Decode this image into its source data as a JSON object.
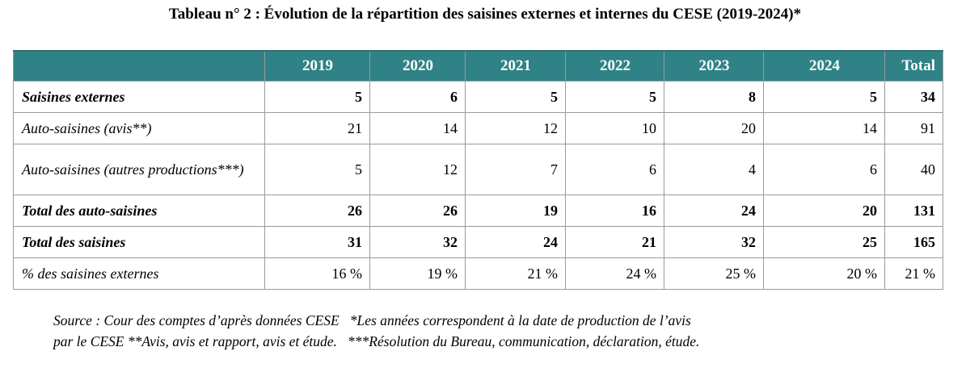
{
  "title": "Tableau n° 2 : Évolution de la répartition des saisines externes et internes du CESE (2019-2024)*",
  "table": {
    "headers": [
      "",
      "2019",
      "2020",
      "2021",
      "2022",
      "2023",
      "2024",
      "Total"
    ],
    "rows": [
      {
        "label": "Saisines externes",
        "values": [
          "5",
          "6",
          "5",
          "5",
          "8",
          "5",
          "34"
        ],
        "bold": true
      },
      {
        "label": "Auto-saisines (avis**)",
        "values": [
          "21",
          "14",
          "12",
          "10",
          "20",
          "14",
          "91"
        ],
        "bold": false
      },
      {
        "label": "Auto-saisines (autres productions***)",
        "values": [
          "5",
          "12",
          "7",
          "6",
          "4",
          "6",
          "40"
        ],
        "bold": false
      },
      {
        "label": "Total des auto-saisines",
        "values": [
          "26",
          "26",
          "19",
          "16",
          "24",
          "20",
          "131"
        ],
        "bold": true
      },
      {
        "label": "Total des saisines",
        "values": [
          "31",
          "32",
          "24",
          "21",
          "32",
          "25",
          "165"
        ],
        "bold": true
      },
      {
        "label": "% des saisines externes",
        "values": [
          "16 %",
          "19 %",
          "21 %",
          "24 %",
          "25 %",
          "20 %",
          "21 %"
        ],
        "bold": false
      }
    ]
  },
  "source": {
    "line1": "Source : Cour des comptes d’après données CESE   *Les années correspondent à la date de production de l’avis",
    "line2": "par le CESE **Avis, avis et rapport, avis et étude.   ***Résolution du Bureau, communication, déclaration, étude."
  },
  "colors": {
    "header_bg": "#2f8285",
    "header_text": "#ffffff",
    "border": "#9a9a9a"
  }
}
